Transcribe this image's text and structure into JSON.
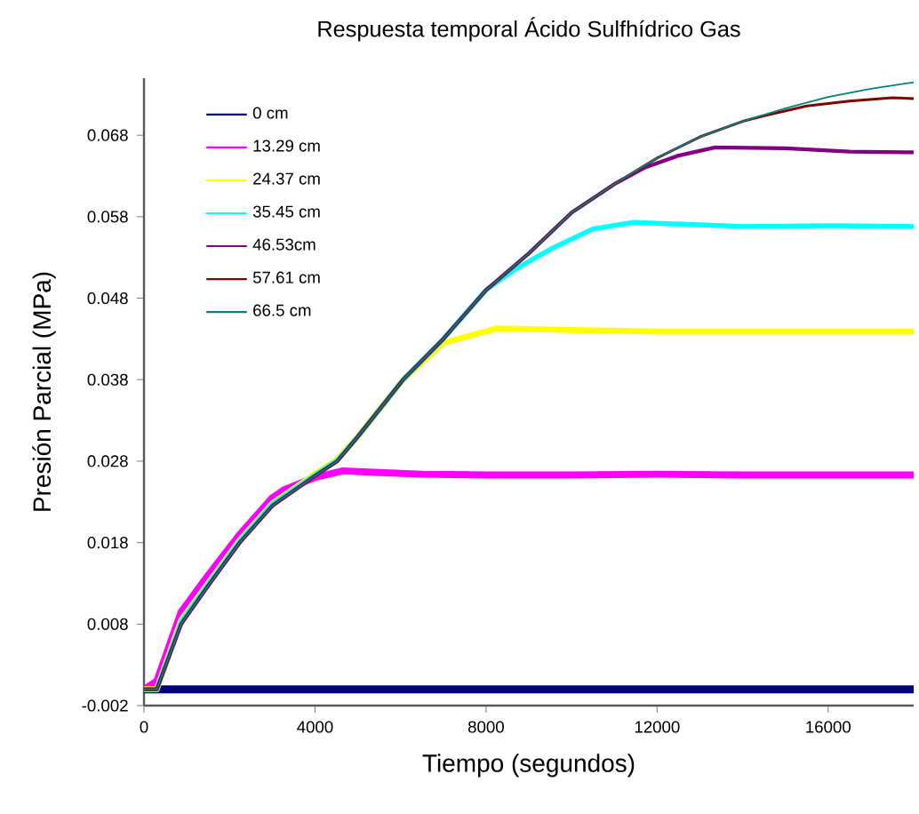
{
  "chart_data": {
    "type": "line",
    "title": "Respuesta temporal Ácido Sulfhídrico Gas",
    "xlabel": "Tiempo (segundos)",
    "ylabel": "Presión Parcial (MPa)",
    "xlim": [
      0,
      18000
    ],
    "ylim": [
      -0.002,
      0.075
    ],
    "xticks": [
      0,
      4000,
      8000,
      12000,
      16000
    ],
    "yticks": [
      -0.002,
      0.008,
      0.018,
      0.028,
      0.038,
      0.048,
      0.058,
      0.068
    ],
    "grid": false,
    "legend": "top left",
    "marker": "none",
    "line_style": "solid",
    "series": [
      {
        "name": "0 cm",
        "color": "#000080",
        "x": [
          0,
          6000,
          12000,
          18000
        ],
        "values": [
          0,
          0,
          0,
          0
        ]
      },
      {
        "name": "13.29 cm",
        "color": "#ff00ff",
        "x": [
          0,
          300,
          870,
          1500,
          2240,
          3000,
          3280,
          4000,
          4650,
          5500,
          6500,
          8000,
          10000,
          12000,
          14000,
          16000,
          18000
        ],
        "values": [
          0,
          0.001,
          0.0095,
          0.014,
          0.019,
          0.0235,
          0.0245,
          0.026,
          0.0268,
          0.0266,
          0.0264,
          0.0263,
          0.0263,
          0.0264,
          0.0263,
          0.0263,
          0.0263
        ]
      },
      {
        "name": "24.37 cm",
        "color": "#ffff00",
        "x": [
          0,
          300,
          870,
          1500,
          2240,
          3000,
          4000,
          4520,
          5000,
          6060,
          7000,
          8260,
          10000,
          12000,
          14000,
          16000,
          18000
        ],
        "values": [
          0,
          0,
          0.0085,
          0.013,
          0.0183,
          0.0228,
          0.0264,
          0.0282,
          0.031,
          0.038,
          0.0425,
          0.0443,
          0.0441,
          0.0439,
          0.0439,
          0.0439,
          0.0439
        ]
      },
      {
        "name": "35.45 cm",
        "color": "#00ffff",
        "x": [
          0,
          300,
          870,
          1500,
          2240,
          3000,
          4000,
          4520,
          5000,
          6060,
          7000,
          8000,
          8670,
          9500,
          10500,
          11450,
          13000,
          14000,
          16000,
          18000
        ],
        "values": [
          0,
          0,
          0.0083,
          0.0129,
          0.0182,
          0.0227,
          0.0263,
          0.0281,
          0.031,
          0.038,
          0.043,
          0.049,
          0.0515,
          0.054,
          0.0565,
          0.0573,
          0.057,
          0.0568,
          0.0569,
          0.0568
        ]
      },
      {
        "name": "46.53cm",
        "color": "#800080",
        "x": [
          0,
          300,
          870,
          1500,
          2240,
          3000,
          4000,
          4520,
          5000,
          6060,
          7000,
          8000,
          9000,
          10000,
          11000,
          11700,
          12500,
          13360,
          15000,
          16500,
          18000
        ],
        "values": [
          0,
          0,
          0.008,
          0.0127,
          0.018,
          0.0225,
          0.0262,
          0.028,
          0.031,
          0.038,
          0.043,
          0.049,
          0.0535,
          0.0585,
          0.062,
          0.064,
          0.0655,
          0.0665,
          0.0664,
          0.066,
          0.0659
        ]
      },
      {
        "name": "57.61 cm",
        "color": "#800000",
        "x": [
          0,
          300,
          870,
          1500,
          2240,
          3000,
          4000,
          4520,
          5000,
          6060,
          7000,
          8000,
          9000,
          10000,
          11000,
          12000,
          13000,
          14000,
          14500,
          15500,
          16500,
          17500,
          18000
        ],
        "values": [
          0,
          0,
          0.008,
          0.0127,
          0.018,
          0.0225,
          0.0262,
          0.028,
          0.031,
          0.038,
          0.043,
          0.049,
          0.0535,
          0.0585,
          0.062,
          0.0652,
          0.0678,
          0.0697,
          0.0704,
          0.0716,
          0.0722,
          0.0726,
          0.0725
        ]
      },
      {
        "name": "66.5 cm",
        "color": "#008080",
        "x": [
          0,
          300,
          870,
          1500,
          2240,
          3000,
          4000,
          4520,
          5000,
          6060,
          7000,
          8000,
          9000,
          10000,
          11000,
          12000,
          13000,
          14000,
          15000,
          16000,
          17000,
          18000
        ],
        "values": [
          0,
          0,
          0.008,
          0.0127,
          0.018,
          0.0225,
          0.0262,
          0.028,
          0.031,
          0.038,
          0.043,
          0.049,
          0.0535,
          0.0585,
          0.062,
          0.0652,
          0.0678,
          0.0697,
          0.0713,
          0.0727,
          0.0737,
          0.0745
        ]
      }
    ]
  }
}
